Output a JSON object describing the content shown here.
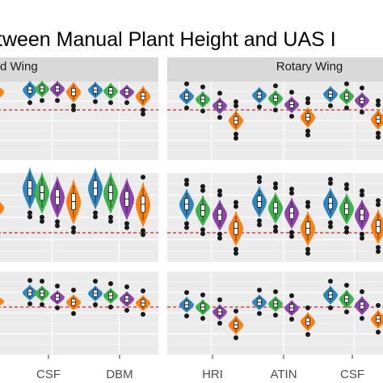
{
  "chart_data": {
    "type": "violin",
    "title": "tween Manual Plant Height and UAS I",
    "facet_columns": [
      "d Wing",
      "Rotary Wing"
    ],
    "x_tick_labels": {
      "d Wing": [
        "CSF",
        "DBM"
      ],
      "Rotary Wing": [
        "HRI",
        "ATIN",
        "CSF"
      ]
    },
    "reference_line": "dashed, red",
    "grid": true,
    "series_colors": {
      "blue": "#2e86c1",
      "green": "#3cb44b",
      "purple": "#8e44ad",
      "orange": "#ff7f0e"
    },
    "reference_color": "#e41a1c",
    "rows": [
      {
        "label": "row-1",
        "panels": [
          {
            "facet": "d Wing",
            "groups": [
              {
                "group": "(cut-off)",
                "violins": [
                  {
                    "color": "orange",
                    "center": 0.17,
                    "spread": 0.08
                  }
                ]
              },
              {
                "group": "CSF",
                "violins": [
                  {
                    "color": "blue",
                    "center": 0.19,
                    "spread": 0.09
                  },
                  {
                    "color": "green",
                    "center": 0.2,
                    "spread": 0.08
                  },
                  {
                    "color": "purple",
                    "center": 0.2,
                    "spread": 0.08
                  },
                  {
                    "color": "orange",
                    "center": 0.17,
                    "spread": 0.1
                  }
                ]
              },
              {
                "group": "DBM",
                "violins": [
                  {
                    "color": "blue",
                    "center": 0.19,
                    "spread": 0.08
                  },
                  {
                    "color": "green",
                    "center": 0.18,
                    "spread": 0.08
                  },
                  {
                    "color": "purple",
                    "center": 0.17,
                    "spread": 0.07
                  },
                  {
                    "color": "orange",
                    "center": 0.13,
                    "spread": 0.1
                  }
                ]
              }
            ]
          },
          {
            "facet": "Rotary Wing",
            "groups": [
              {
                "group": "HRI",
                "violins": [
                  {
                    "color": "blue",
                    "center": 0.13,
                    "spread": 0.08
                  },
                  {
                    "color": "green",
                    "center": 0.1,
                    "spread": 0.08
                  },
                  {
                    "color": "purple",
                    "center": 0.04,
                    "spread": 0.08
                  },
                  {
                    "color": "orange",
                    "center": -0.1,
                    "spread": 0.1
                  }
                ]
              },
              {
                "group": "ATIN",
                "violins": [
                  {
                    "color": "blue",
                    "center": 0.14,
                    "spread": 0.08
                  },
                  {
                    "color": "green",
                    "center": 0.11,
                    "spread": 0.08
                  },
                  {
                    "color": "purple",
                    "center": 0.05,
                    "spread": 0.08
                  },
                  {
                    "color": "orange",
                    "center": -0.07,
                    "spread": 0.1
                  }
                ]
              },
              {
                "group": "CSF",
                "violins": [
                  {
                    "color": "blue",
                    "center": 0.15,
                    "spread": 0.08
                  },
                  {
                    "color": "green",
                    "center": 0.13,
                    "spread": 0.08
                  },
                  {
                    "color": "purple",
                    "center": 0.09,
                    "spread": 0.08
                  },
                  {
                    "color": "orange",
                    "center": -0.09,
                    "spread": 0.1
                  }
                ]
              }
            ]
          }
        ]
      },
      {
        "label": "row-2",
        "panels": [
          {
            "facet": "d Wing",
            "groups": [
              {
                "group": "(cut-off)",
                "violins": [
                  {
                    "color": "orange",
                    "center": 0.28,
                    "spread": 0.12
                  }
                ]
              },
              {
                "group": "CSF",
                "violins": [
                  {
                    "color": "blue",
                    "center": 0.5,
                    "spread": 0.24
                  },
                  {
                    "color": "green",
                    "center": 0.45,
                    "spread": 0.24
                  },
                  {
                    "color": "purple",
                    "center": 0.4,
                    "spread": 0.24
                  },
                  {
                    "color": "orange",
                    "center": 0.35,
                    "spread": 0.26
                  }
                ]
              },
              {
                "group": "DBM",
                "violins": [
                  {
                    "color": "blue",
                    "center": 0.5,
                    "spread": 0.24
                  },
                  {
                    "color": "green",
                    "center": 0.45,
                    "spread": 0.24
                  },
                  {
                    "color": "purple",
                    "center": 0.38,
                    "spread": 0.24
                  },
                  {
                    "color": "orange",
                    "center": 0.32,
                    "spread": 0.26
                  }
                ]
              }
            ]
          },
          {
            "facet": "Rotary Wing",
            "groups": [
              {
                "group": "HRI",
                "violins": [
                  {
                    "color": "blue",
                    "center": 0.32,
                    "spread": 0.18
                  },
                  {
                    "color": "green",
                    "center": 0.25,
                    "spread": 0.18
                  },
                  {
                    "color": "purple",
                    "center": 0.2,
                    "spread": 0.18
                  },
                  {
                    "color": "orange",
                    "center": 0.05,
                    "spread": 0.2
                  }
                ]
              },
              {
                "group": "ATIN",
                "violins": [
                  {
                    "color": "blue",
                    "center": 0.35,
                    "spread": 0.18
                  },
                  {
                    "color": "green",
                    "center": 0.28,
                    "spread": 0.18
                  },
                  {
                    "color": "purple",
                    "center": 0.22,
                    "spread": 0.18
                  },
                  {
                    "color": "orange",
                    "center": 0.05,
                    "spread": 0.2
                  }
                ]
              },
              {
                "group": "CSF",
                "violins": [
                  {
                    "color": "blue",
                    "center": 0.33,
                    "spread": 0.18
                  },
                  {
                    "color": "green",
                    "center": 0.27,
                    "spread": 0.18
                  },
                  {
                    "color": "purple",
                    "center": 0.2,
                    "spread": 0.18
                  },
                  {
                    "color": "orange",
                    "center": 0.07,
                    "spread": 0.2
                  }
                ]
              }
            ]
          }
        ]
      },
      {
        "label": "row-3",
        "panels": [
          {
            "facet": "d Wing",
            "groups": [
              {
                "group": "(cut-off)",
                "violins": [
                  {
                    "color": "orange",
                    "center": 0.07,
                    "spread": 0.08
                  }
                ]
              },
              {
                "group": "CSF",
                "violins": [
                  {
                    "color": "blue",
                    "center": 0.18,
                    "spread": 0.1
                  },
                  {
                    "color": "green",
                    "center": 0.17,
                    "spread": 0.1
                  },
                  {
                    "color": "purple",
                    "center": 0.12,
                    "spread": 0.09
                  },
                  {
                    "color": "orange",
                    "center": 0.06,
                    "spread": 0.1
                  }
                ]
              },
              {
                "group": "DBM",
                "violins": [
                  {
                    "color": "blue",
                    "center": 0.17,
                    "spread": 0.1
                  },
                  {
                    "color": "green",
                    "center": 0.14,
                    "spread": 0.1
                  },
                  {
                    "color": "purple",
                    "center": 0.1,
                    "spread": 0.1
                  },
                  {
                    "color": "orange",
                    "center": 0.05,
                    "spread": 0.1
                  }
                ]
              }
            ]
          },
          {
            "facet": "Rotary Wing",
            "groups": [
              {
                "group": "HRI",
                "violins": [
                  {
                    "color": "blue",
                    "center": 0.03,
                    "spread": 0.1
                  },
                  {
                    "color": "green",
                    "center": 0.0,
                    "spread": 0.1
                  },
                  {
                    "color": "purple",
                    "center": -0.06,
                    "spread": 0.1
                  },
                  {
                    "color": "orange",
                    "center": -0.22,
                    "spread": 0.12
                  }
                ]
              },
              {
                "group": "ATIN",
                "violins": [
                  {
                    "color": "blue",
                    "center": 0.06,
                    "spread": 0.1
                  },
                  {
                    "color": "green",
                    "center": 0.04,
                    "spread": 0.1
                  },
                  {
                    "color": "purple",
                    "center": -0.01,
                    "spread": 0.1
                  },
                  {
                    "color": "orange",
                    "center": -0.18,
                    "spread": 0.12
                  }
                ]
              },
              {
                "group": "CSF",
                "violins": [
                  {
                    "color": "blue",
                    "center": 0.15,
                    "spread": 0.12
                  },
                  {
                    "color": "green",
                    "center": 0.1,
                    "spread": 0.12
                  },
                  {
                    "color": "purple",
                    "center": 0.02,
                    "spread": 0.12
                  },
                  {
                    "color": "orange",
                    "center": -0.15,
                    "spread": 0.12
                  }
                ]
              }
            ]
          }
        ]
      }
    ]
  }
}
